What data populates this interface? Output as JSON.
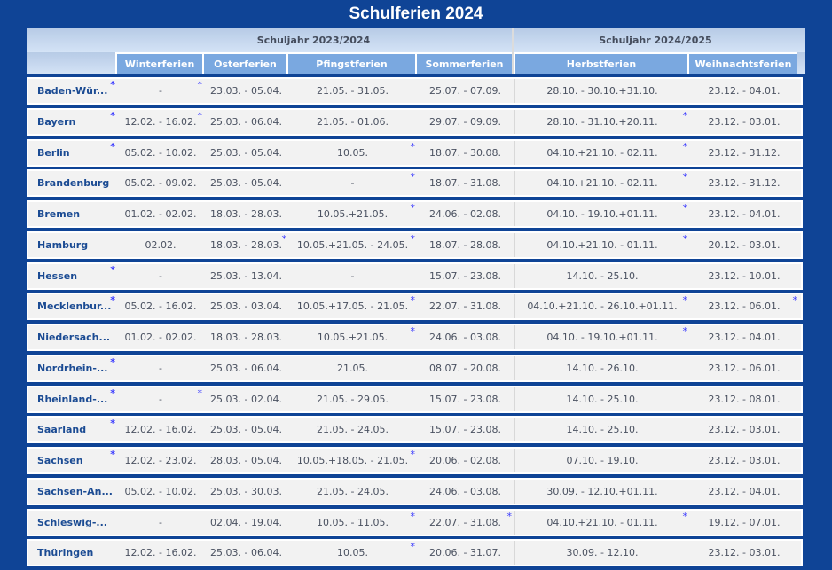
{
  "title": "Schulferien 2024",
  "header": {
    "years": [
      "Schuljahr 2023/2024",
      "Schuljahr 2024/2025"
    ],
    "columns": [
      "Winterferien",
      "Osterferien",
      "Pfingstferien",
      "Sommerferien",
      "Herbstferien",
      "Weihnachtsferien"
    ]
  },
  "footnote_marker": "*",
  "rows": [
    {
      "state": "Baden-Wür...",
      "cells": [
        "-",
        "23.03. - 05.04.",
        "21.05. - 31.05.",
        "25.07. - 07.09.",
        "28.10. - 30.10.+31.10.",
        "23.12. - 04.01."
      ],
      "stars": [
        1,
        1,
        0,
        0,
        0,
        0,
        0
      ]
    },
    {
      "state": "Bayern",
      "cells": [
        "12.02. - 16.02.",
        "25.03. - 06.04.",
        "21.05. - 01.06.",
        "29.07. - 09.09.",
        "28.10. - 31.10.+20.11.",
        "23.12. - 03.01."
      ],
      "stars": [
        1,
        1,
        0,
        0,
        0,
        1,
        0
      ]
    },
    {
      "state": "Berlin",
      "cells": [
        "05.02. - 10.02.",
        "25.03. - 05.04.",
        "10.05.",
        "18.07. - 30.08.",
        "04.10.+21.10. - 02.11.",
        "23.12. - 31.12."
      ],
      "stars": [
        1,
        0,
        0,
        1,
        0,
        1,
        0
      ]
    },
    {
      "state": "Brandenburg",
      "cells": [
        "05.02. - 09.02.",
        "25.03. - 05.04.",
        "-",
        "18.07. - 31.08.",
        "04.10.+21.10. - 02.11.",
        "23.12. - 31.12."
      ],
      "stars": [
        0,
        0,
        0,
        1,
        0,
        1,
        0
      ]
    },
    {
      "state": "Bremen",
      "cells": [
        "01.02. - 02.02.",
        "18.03. - 28.03.",
        "10.05.+21.05.",
        "24.06. - 02.08.",
        "04.10. - 19.10.+01.11.",
        "23.12. - 04.01."
      ],
      "stars": [
        0,
        0,
        0,
        1,
        0,
        1,
        0
      ]
    },
    {
      "state": "Hamburg",
      "cells": [
        "02.02.",
        "18.03. - 28.03.",
        "10.05.+21.05. - 24.05.",
        "18.07. - 28.08.",
        "04.10.+21.10. - 01.11.",
        "20.12. - 03.01."
      ],
      "stars": [
        0,
        0,
        1,
        1,
        0,
        1,
        0
      ]
    },
    {
      "state": "Hessen",
      "cells": [
        "-",
        "25.03. - 13.04.",
        "-",
        "15.07. - 23.08.",
        "14.10. - 25.10.",
        "23.12. - 10.01."
      ],
      "stars": [
        1,
        0,
        0,
        0,
        0,
        0,
        0
      ]
    },
    {
      "state": "Mecklenbur...",
      "cells": [
        "05.02. - 16.02.",
        "25.03. - 03.04.",
        "10.05.+17.05. - 21.05.",
        "22.07. - 31.08.",
        "04.10.+21.10. - 26.10.+01.11.",
        "23.12. - 06.01."
      ],
      "stars": [
        1,
        0,
        0,
        1,
        0,
        1,
        1
      ]
    },
    {
      "state": "Niedersach...",
      "cells": [
        "01.02. - 02.02.",
        "18.03. - 28.03.",
        "10.05.+21.05.",
        "24.06. - 03.08.",
        "04.10. - 19.10.+01.11.",
        "23.12. - 04.01."
      ],
      "stars": [
        0,
        0,
        0,
        1,
        0,
        1,
        0
      ]
    },
    {
      "state": "Nordrhein-...",
      "cells": [
        "-",
        "25.03. - 06.04.",
        "21.05.",
        "08.07. - 20.08.",
        "14.10. - 26.10.",
        "23.12. - 06.01."
      ],
      "stars": [
        1,
        0,
        0,
        0,
        0,
        0,
        0
      ]
    },
    {
      "state": "Rheinland-...",
      "cells": [
        "-",
        "25.03. - 02.04.",
        "21.05. - 29.05.",
        "15.07. - 23.08.",
        "14.10. - 25.10.",
        "23.12. - 08.01."
      ],
      "stars": [
        1,
        1,
        0,
        0,
        0,
        0,
        0
      ]
    },
    {
      "state": "Saarland",
      "cells": [
        "12.02. - 16.02.",
        "25.03. - 05.04.",
        "21.05. - 24.05.",
        "15.07. - 23.08.",
        "14.10. - 25.10.",
        "23.12. - 03.01."
      ],
      "stars": [
        1,
        0,
        0,
        0,
        0,
        0,
        0
      ]
    },
    {
      "state": "Sachsen",
      "cells": [
        "12.02. - 23.02.",
        "28.03. - 05.04.",
        "10.05.+18.05. - 21.05.",
        "20.06. - 02.08.",
        "07.10. - 19.10.",
        "23.12. - 03.01."
      ],
      "stars": [
        1,
        0,
        0,
        1,
        0,
        0,
        0
      ]
    },
    {
      "state": "Sachsen-An...",
      "cells": [
        "05.02. - 10.02.",
        "25.03. - 30.03.",
        "21.05. - 24.05.",
        "24.06. - 03.08.",
        "30.09. - 12.10.+01.11.",
        "23.12. - 04.01."
      ],
      "stars": [
        0,
        0,
        0,
        0,
        0,
        0,
        0
      ]
    },
    {
      "state": "Schleswig-...",
      "cells": [
        "-",
        "02.04. - 19.04.",
        "10.05. - 11.05.",
        "22.07. - 31.08.",
        "04.10.+21.10. - 01.11.",
        "19.12. - 07.01."
      ],
      "stars": [
        0,
        0,
        0,
        1,
        1,
        1,
        0
      ]
    },
    {
      "state": "Thüringen",
      "cells": [
        "12.02. - 16.02.",
        "25.03. - 06.04.",
        "10.05.",
        "20.06. - 31.07.",
        "30.09. - 12.10.",
        "23.12. - 03.01."
      ],
      "stars": [
        0,
        0,
        0,
        1,
        0,
        0,
        0
      ]
    }
  ]
}
